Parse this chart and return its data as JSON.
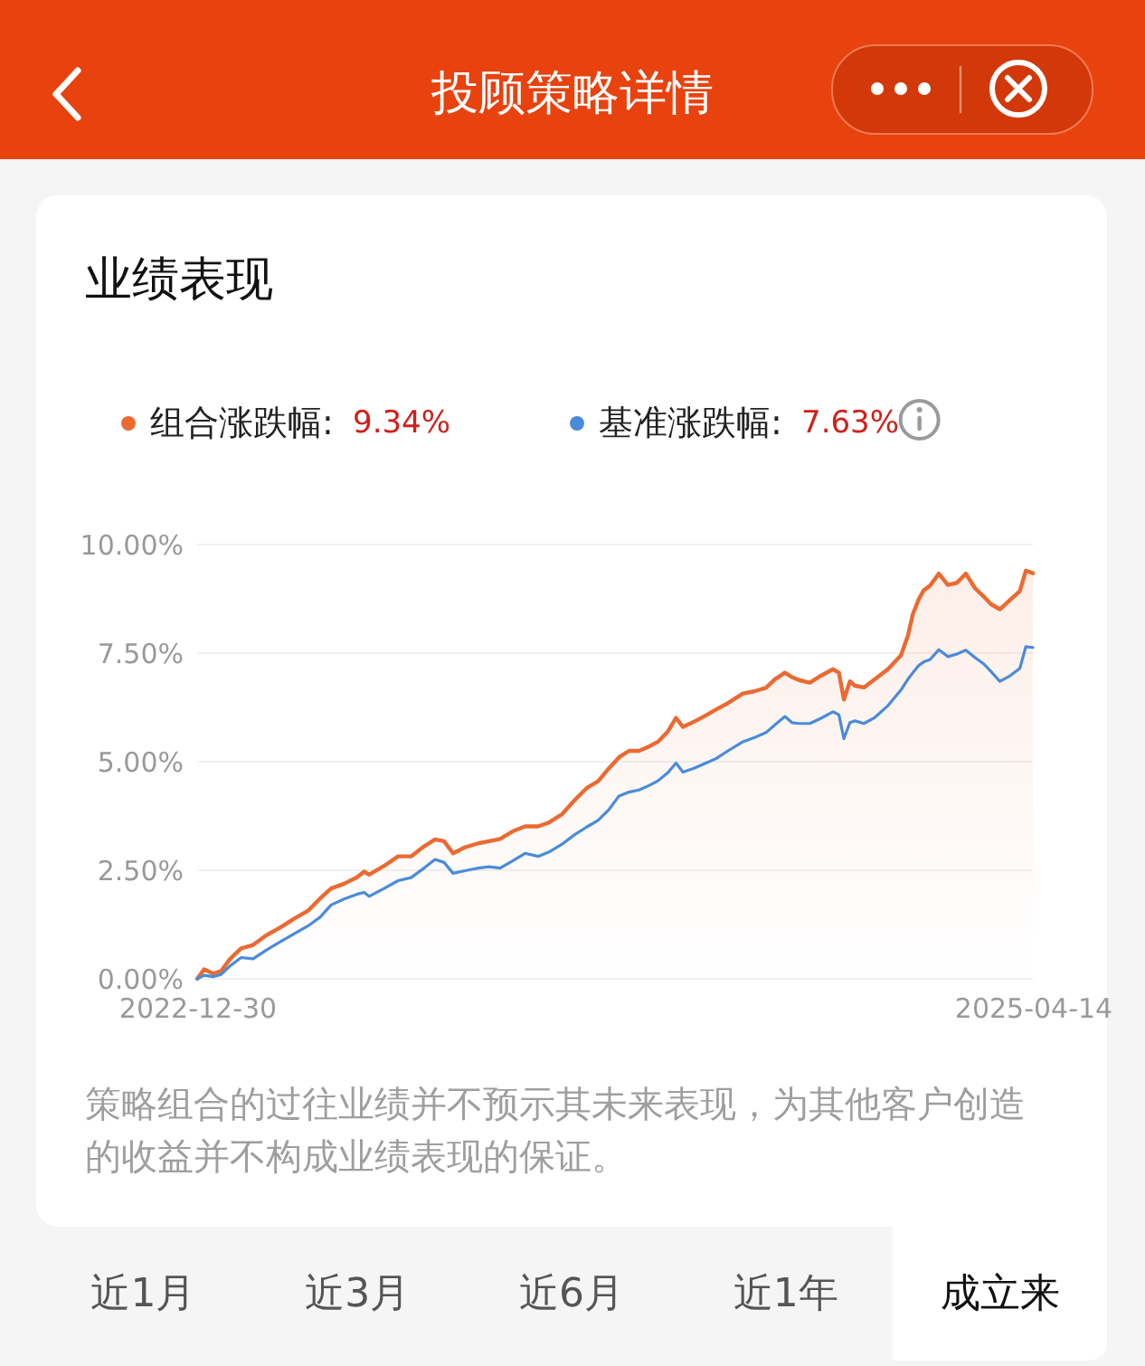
{
  "chart_data": {
    "type": "line",
    "title": "业绩表现",
    "annotations": [
      "投顾策略详情",
      "9.34%",
      "7.63%",
      "策略组合的过往业绩并不预示其未来表现，为其他客户创造的收益并不构成业绩表现的保证。",
      "近1月",
      "近3月",
      "近6月",
      "近1年",
      "成立来"
    ],
    "x": [
      "2022-12-30",
      "2023-01-06",
      "2023-01-15",
      "2023-01-23",
      "2023-02-01",
      "2023-02-12",
      "2023-02-24",
      "2023-03-09",
      "2023-03-23",
      "2023-04-07",
      "2023-04-20",
      "2023-05-02",
      "2023-05-13",
      "2023-05-26",
      "2023-06-08",
      "2023-06-15",
      "2023-06-20",
      "2023-07-05",
      "2023-07-19",
      "2023-08-01",
      "2023-08-14",
      "2023-08-25",
      "2023-09-03",
      "2023-09-12",
      "2023-09-24",
      "2023-10-07",
      "2023-10-18",
      "2023-10-29",
      "2023-11-11",
      "2023-11-23",
      "2023-12-06",
      "2023-12-17",
      "2023-12-30",
      "2024-01-11",
      "2024-01-24",
      "2024-02-04",
      "2024-02-15",
      "2024-02-25",
      "2024-03-06",
      "2024-03-16",
      "2024-03-26",
      "2024-04-04",
      "2024-04-14",
      "2024-04-22",
      "2024-04-29",
      "2024-05-10",
      "2024-05-23",
      "2024-06-01",
      "2024-06-13",
      "2024-06-28",
      "2024-07-09",
      "2024-07-21",
      "2024-07-30",
      "2024-08-09",
      "2024-08-16",
      "2024-08-23",
      "2024-09-03",
      "2024-09-14",
      "2024-09-26",
      "2024-10-02",
      "2024-10-07",
      "2024-10-13",
      "2024-10-18",
      "2024-10-27",
      "2024-11-07",
      "2024-11-20",
      "2024-12-03",
      "2024-12-10",
      "2024-12-15",
      "2024-12-21",
      "2024-12-26",
      "2025-01-01",
      "2025-01-10",
      "2025-01-19",
      "2025-01-28",
      "2025-02-06",
      "2025-02-15",
      "2025-02-24",
      "2025-03-03",
      "2025-03-12",
      "2025-03-21",
      "2025-04-01",
      "2025-04-07",
      "2025-04-14"
    ],
    "series": [
      {
        "name": "组合涨跌幅:",
        "color": "#eb6a32",
        "type": "area",
        "values": [
          0.0,
          0.22,
          0.12,
          0.18,
          0.46,
          0.7,
          0.78,
          1.0,
          1.18,
          1.4,
          1.57,
          1.85,
          2.08,
          2.19,
          2.34,
          2.47,
          2.4,
          2.6,
          2.82,
          2.82,
          3.05,
          3.21,
          3.17,
          2.89,
          3.03,
          3.12,
          3.17,
          3.22,
          3.4,
          3.51,
          3.51,
          3.6,
          3.79,
          4.1,
          4.4,
          4.55,
          4.85,
          5.1,
          5.25,
          5.25,
          5.35,
          5.46,
          5.7,
          6.01,
          5.8,
          5.92,
          6.08,
          6.2,
          6.35,
          6.57,
          6.62,
          6.7,
          6.9,
          7.05,
          6.95,
          6.88,
          6.82,
          6.98,
          7.13,
          7.05,
          6.43,
          6.85,
          6.75,
          6.71,
          6.9,
          7.13,
          7.45,
          7.9,
          8.4,
          8.75,
          8.95,
          9.05,
          9.33,
          9.07,
          9.12,
          9.33,
          9.0,
          8.8,
          8.63,
          8.51,
          8.7,
          8.93,
          9.4,
          9.34
        ]
      },
      {
        "name": "基准涨跌幅:",
        "color": "#4a8bd9",
        "values": [
          0.0,
          0.08,
          0.05,
          0.1,
          0.3,
          0.49,
          0.46,
          0.66,
          0.85,
          1.05,
          1.22,
          1.42,
          1.7,
          1.84,
          1.95,
          1.99,
          1.9,
          2.08,
          2.26,
          2.33,
          2.55,
          2.75,
          2.68,
          2.43,
          2.49,
          2.55,
          2.58,
          2.55,
          2.72,
          2.89,
          2.82,
          2.92,
          3.1,
          3.31,
          3.5,
          3.65,
          3.9,
          4.21,
          4.3,
          4.35,
          4.45,
          4.56,
          4.75,
          4.97,
          4.76,
          4.85,
          4.98,
          5.07,
          5.25,
          5.46,
          5.55,
          5.67,
          5.85,
          6.04,
          5.9,
          5.88,
          5.88,
          6.0,
          6.15,
          6.08,
          5.53,
          5.9,
          5.94,
          5.88,
          6.02,
          6.29,
          6.65,
          6.9,
          7.05,
          7.22,
          7.3,
          7.35,
          7.58,
          7.42,
          7.48,
          7.57,
          7.4,
          7.25,
          7.08,
          6.85,
          6.96,
          7.15,
          7.65,
          7.63
        ]
      }
    ],
    "xlim": [
      "2022-12-30",
      "2025-04-14"
    ],
    "xticks": [
      "2022-12-30",
      "2025-04-14"
    ],
    "ylim": [
      0,
      10
    ],
    "yticks": [
      {
        "value": 0,
        "label": "0.00%"
      },
      {
        "value": 2.5,
        "label": "2.50%"
      },
      {
        "value": 5,
        "label": "5.00%"
      },
      {
        "value": 7.5,
        "label": "7.50%"
      },
      {
        "value": 10,
        "label": "10.00%"
      }
    ],
    "grid": "y",
    "legend": "top"
  }
}
